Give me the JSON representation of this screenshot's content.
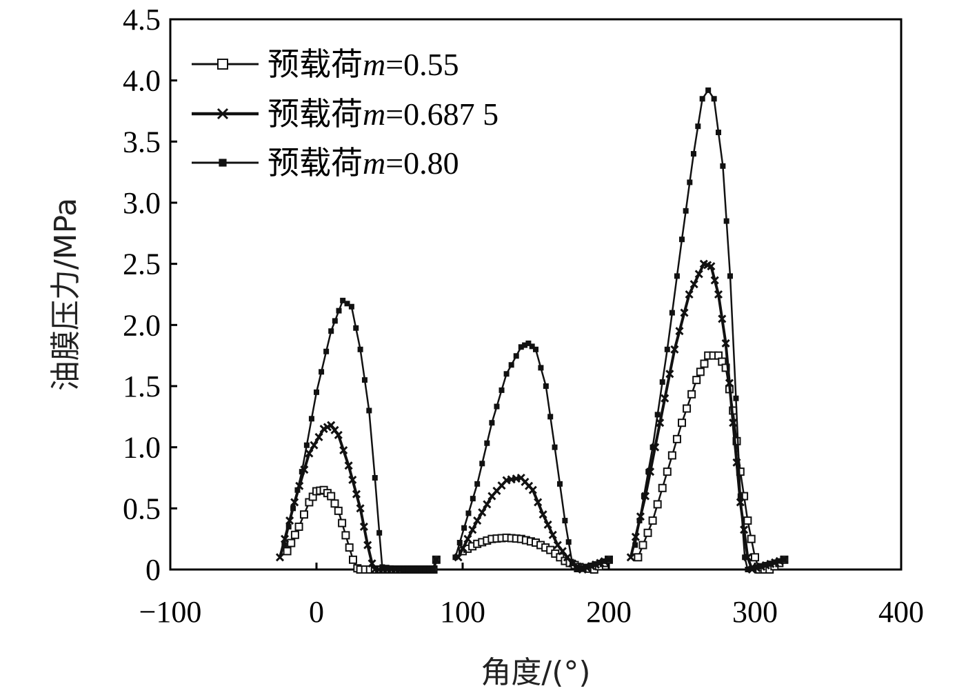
{
  "chart_data": {
    "type": "line",
    "xlabel": "角度/(°)",
    "ylabel": "油膜压力/MPa",
    "xlim": [
      -100,
      400
    ],
    "ylim": [
      0,
      4.5
    ],
    "x_ticks": [
      "−100",
      "0",
      "100",
      "200",
      "300",
      "400"
    ],
    "y_ticks": [
      "0",
      "0.5",
      "1.0",
      "1.5",
      "2.0",
      "2.5",
      "3.0",
      "3.5",
      "4.0",
      "4.5"
    ],
    "legend_position": "top-left",
    "grid": false,
    "series": [
      {
        "name_prefix": "预载荷",
        "name_var": "m",
        "name_value": "=0.55",
        "marker": "open-square",
        "segments": [
          [
            [
              -20,
              0.15
            ],
            [
              -12,
              0.35
            ],
            [
              -5,
              0.55
            ],
            [
              0,
              0.64
            ],
            [
              5,
              0.65
            ],
            [
              10,
              0.6
            ],
            [
              15,
              0.48
            ],
            [
              20,
              0.28
            ],
            [
              25,
              0.08
            ],
            [
              28,
              0.01
            ],
            [
              30,
              0
            ],
            [
              40,
              0
            ],
            [
              60,
              0
            ],
            [
              80,
              0
            ],
            [
              82,
              0.08
            ]
          ],
          [
            [
              100,
              0.15
            ],
            [
              110,
              0.21
            ],
            [
              120,
              0.25
            ],
            [
              130,
              0.26
            ],
            [
              140,
              0.25
            ],
            [
              150,
              0.22
            ],
            [
              160,
              0.16
            ],
            [
              170,
              0.07
            ],
            [
              180,
              0.02
            ],
            [
              190,
              0
            ],
            [
              200,
              0.08
            ]
          ],
          [
            [
              220,
              0.1
            ],
            [
              230,
              0.4
            ],
            [
              240,
              0.8
            ],
            [
              250,
              1.2
            ],
            [
              260,
              1.55
            ],
            [
              268,
              1.75
            ],
            [
              275,
              1.75
            ],
            [
              280,
              1.65
            ],
            [
              285,
              1.3
            ],
            [
              290,
              0.8
            ],
            [
              295,
              0.4
            ],
            [
              300,
              0.1
            ],
            [
              303,
              0
            ],
            [
              310,
              0
            ],
            [
              320,
              0.08
            ]
          ]
        ]
      },
      {
        "name_prefix": "预载荷",
        "name_var": "m",
        "name_value": "=0.687 5",
        "marker": "x",
        "segments": [
          [
            [
              -25,
              0.1
            ],
            [
              -15,
              0.55
            ],
            [
              -5,
              0.95
            ],
            [
              5,
              1.15
            ],
            [
              10,
              1.18
            ],
            [
              15,
              1.1
            ],
            [
              22,
              0.85
            ],
            [
              30,
              0.5
            ],
            [
              35,
              0.2
            ],
            [
              38,
              0.05
            ],
            [
              40,
              0
            ],
            [
              60,
              0
            ],
            [
              80,
              0
            ],
            [
              82,
              0.08
            ]
          ],
          [
            [
              97,
              0.1
            ],
            [
              110,
              0.4
            ],
            [
              120,
              0.6
            ],
            [
              130,
              0.73
            ],
            [
              140,
              0.75
            ],
            [
              148,
              0.65
            ],
            [
              155,
              0.45
            ],
            [
              165,
              0.2
            ],
            [
              175,
              0.05
            ],
            [
              182,
              0
            ],
            [
              200,
              0.08
            ]
          ],
          [
            [
              215,
              0.1
            ],
            [
              225,
              0.6
            ],
            [
              235,
              1.2
            ],
            [
              245,
              1.8
            ],
            [
              255,
              2.25
            ],
            [
              265,
              2.5
            ],
            [
              270,
              2.48
            ],
            [
              275,
              2.25
            ],
            [
              280,
              1.85
            ],
            [
              285,
              1.2
            ],
            [
              290,
              0.55
            ],
            [
              295,
              0.1
            ],
            [
              298,
              0
            ],
            [
              320,
              0.08
            ]
          ]
        ]
      },
      {
        "name_prefix": "预载荷",
        "name_var": "m",
        "name_value": "=0.80",
        "marker": "filled-square",
        "segments": [
          [
            [
              -22,
              0.2
            ],
            [
              -10,
              0.8
            ],
            [
              0,
              1.45
            ],
            [
              10,
              1.95
            ],
            [
              18,
              2.2
            ],
            [
              24,
              2.15
            ],
            [
              30,
              1.8
            ],
            [
              36,
              1.3
            ],
            [
              40,
              0.75
            ],
            [
              43,
              0.3
            ],
            [
              45,
              0.02
            ],
            [
              60,
              0
            ],
            [
              80,
              0
            ],
            [
              82,
              0.08
            ]
          ],
          [
            [
              95,
              0.1
            ],
            [
              110,
              0.7
            ],
            [
              120,
              1.2
            ],
            [
              130,
              1.6
            ],
            [
              140,
              1.82
            ],
            [
              145,
              1.85
            ],
            [
              150,
              1.8
            ],
            [
              157,
              1.5
            ],
            [
              163,
              1.0
            ],
            [
              170,
              0.4
            ],
            [
              175,
              0.05
            ],
            [
              178,
              0
            ],
            [
              200,
              0.08
            ]
          ],
          [
            [
              218,
              0.2
            ],
            [
              230,
              1.0
            ],
            [
              240,
              1.8
            ],
            [
              250,
              2.7
            ],
            [
              258,
              3.4
            ],
            [
              264,
              3.85
            ],
            [
              268,
              3.92
            ],
            [
              272,
              3.85
            ],
            [
              278,
              3.3
            ],
            [
              283,
              2.4
            ],
            [
              287,
              1.4
            ],
            [
              290,
              0.6
            ],
            [
              293,
              0.1
            ],
            [
              295,
              0
            ],
            [
              320,
              0.08
            ]
          ]
        ]
      }
    ]
  }
}
